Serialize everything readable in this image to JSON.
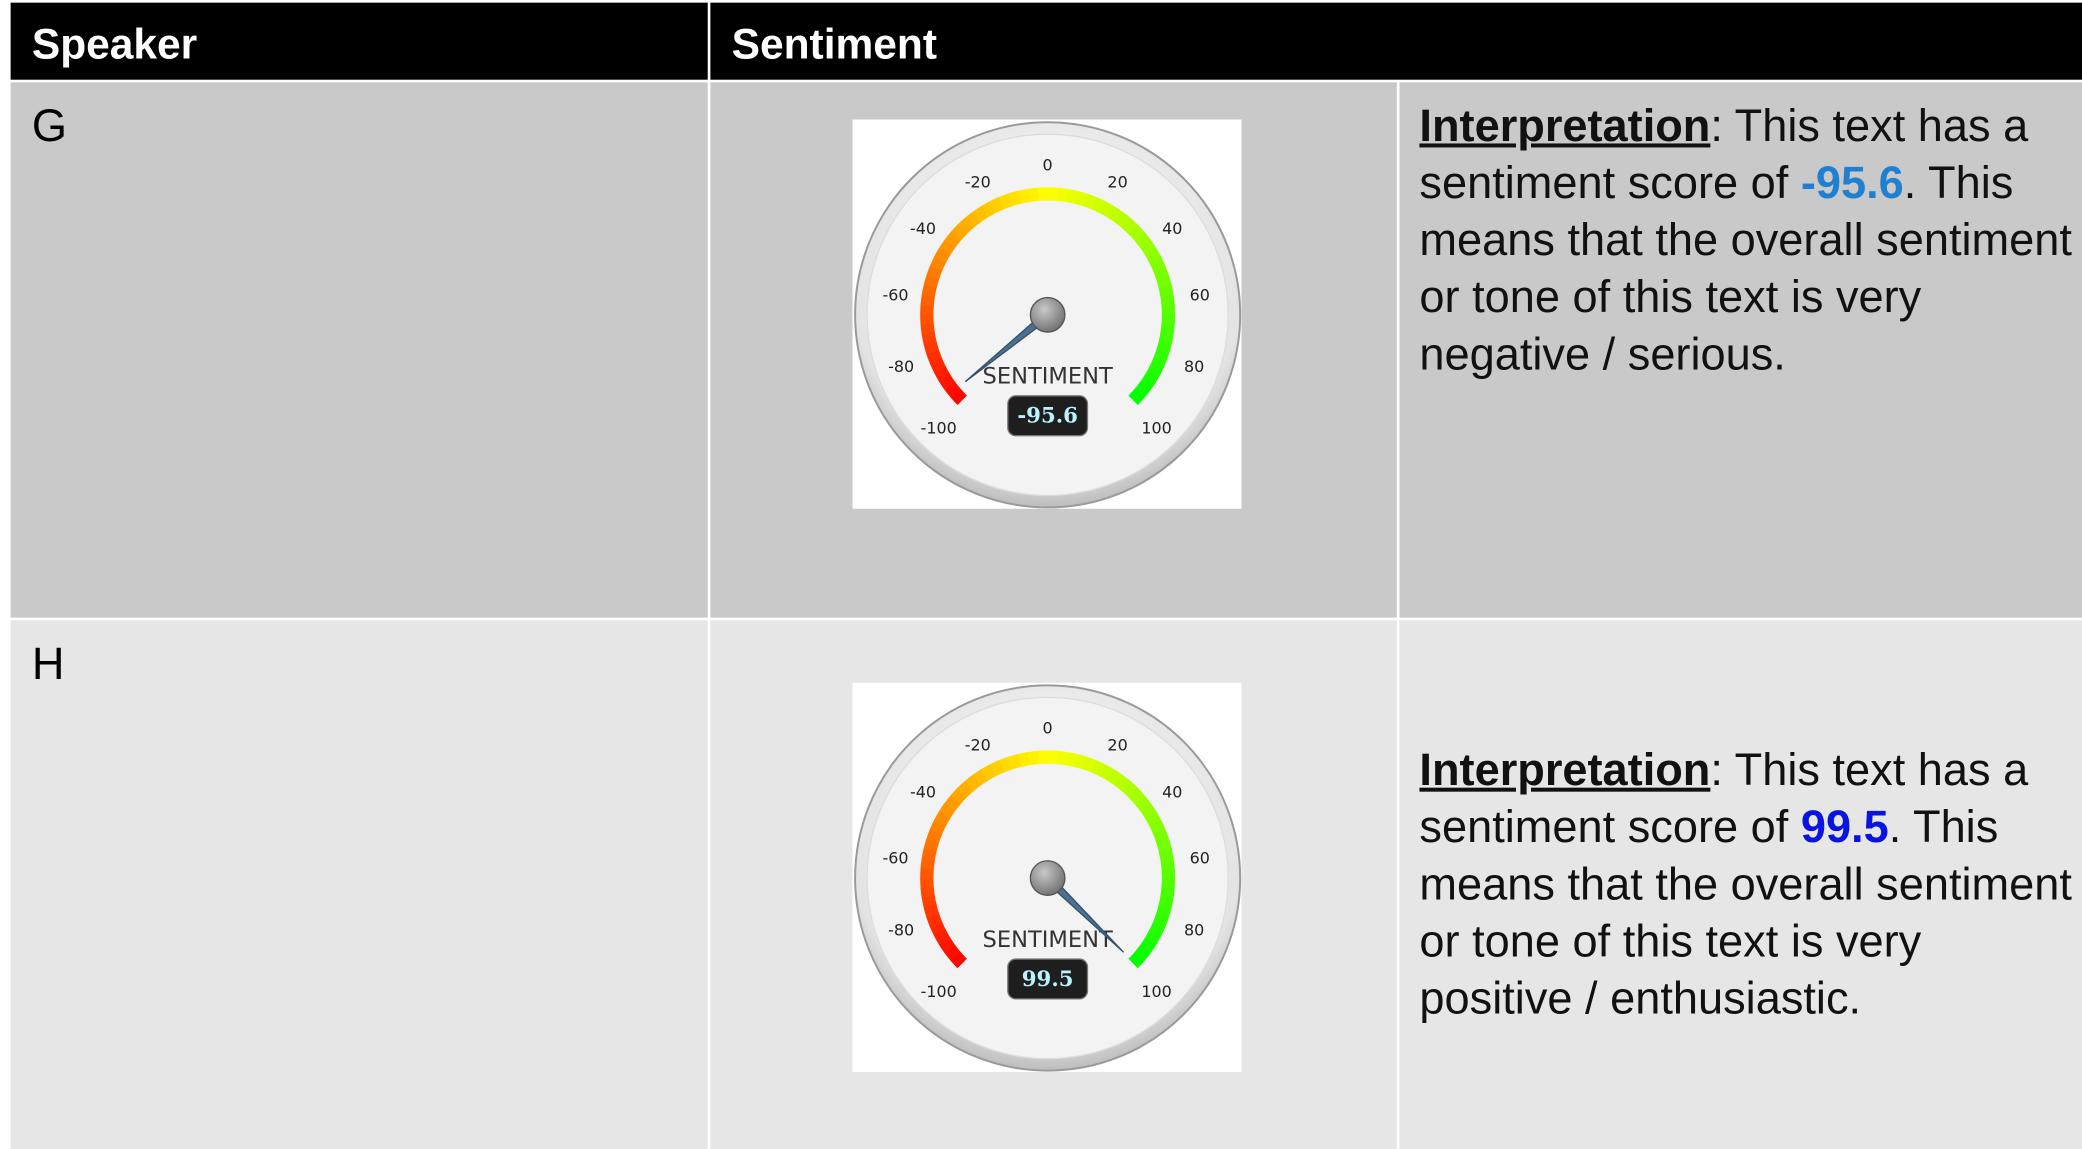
{
  "table": {
    "headers": [
      "Speaker",
      "Sentiment"
    ],
    "rows": [
      {
        "speaker": "G",
        "gauge": {
          "type": "gauge",
          "label": "SENTIMENT",
          "value": -95.6,
          "lim": [
            -100,
            100
          ],
          "ticks": [
            -100,
            -80,
            -60,
            -40,
            -20,
            0,
            20,
            40,
            60,
            80,
            100
          ]
        },
        "interpretation": {
          "heading": "Interpretation",
          "before": ": This text has a sentiment score of ",
          "value_color": "#1f7fd0",
          "after": ". This means that the overall sentiment or tone of this text is very negative / serious."
        }
      },
      {
        "speaker": "H",
        "gauge": {
          "type": "gauge",
          "label": "SENTIMENT",
          "value": 99.5,
          "lim": [
            -100,
            100
          ],
          "ticks": [
            -100,
            -80,
            -60,
            -40,
            -20,
            0,
            20,
            40,
            60,
            80,
            100
          ]
        },
        "interpretation": {
          "heading": "Interpretation",
          "before": ": This text has a sentiment score of ",
          "value_color": "#0a14e0",
          "after": ". This means that the overall sentiment or tone of this text is very positive / enthusiastic."
        }
      }
    ]
  }
}
